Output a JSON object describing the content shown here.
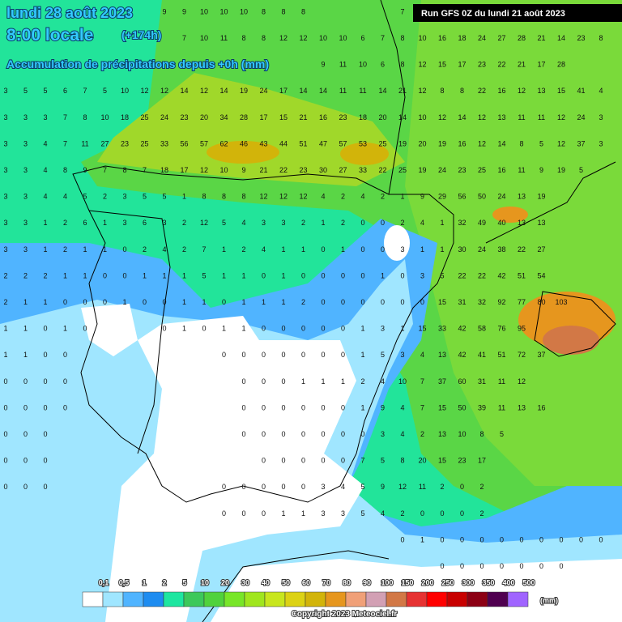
{
  "header": {
    "date": "lundi 28 août 2023",
    "time": "8:00 locale",
    "lead": "(+174h)",
    "subtitle": "Accumulation de précipitations depuis +0h (mm)"
  },
  "run": "Run GFS 0Z du lundi 21 août 2023",
  "grid": {
    "rows": [
      [
        null,
        null,
        null,
        null,
        null,
        null,
        null,
        null,
        9,
        9,
        10,
        10,
        10,
        8,
        8,
        8,
        null,
        null,
        null,
        null,
        7,
        null,
        null,
        null,
        null,
        null,
        null,
        null,
        null,
        null,
        null,
        null
      ],
      [
        null,
        null,
        null,
        null,
        null,
        null,
        null,
        null,
        null,
        7,
        10,
        11,
        8,
        8,
        12,
        12,
        10,
        10,
        6,
        7,
        8,
        10,
        16,
        18,
        24,
        27,
        28,
        21,
        14,
        23,
        8,
        null
      ],
      [
        null,
        null,
        null,
        null,
        null,
        null,
        null,
        null,
        null,
        null,
        null,
        null,
        null,
        null,
        null,
        null,
        9,
        11,
        10,
        6,
        8,
        12,
        15,
        17,
        23,
        22,
        21,
        17,
        28,
        null,
        null,
        null
      ],
      [
        3,
        5,
        5,
        6,
        7,
        5,
        10,
        12,
        12,
        14,
        12,
        14,
        19,
        24,
        17,
        14,
        14,
        11,
        11,
        14,
        21,
        12,
        8,
        8,
        22,
        16,
        12,
        13,
        15,
        41,
        4,
        null
      ],
      [
        3,
        3,
        3,
        7,
        8,
        10,
        18,
        25,
        24,
        23,
        20,
        34,
        28,
        17,
        15,
        21,
        16,
        23,
        18,
        20,
        14,
        10,
        12,
        14,
        12,
        13,
        11,
        11,
        12,
        24,
        3,
        null
      ],
      [
        3,
        3,
        4,
        7,
        11,
        27,
        23,
        25,
        33,
        56,
        57,
        62,
        46,
        43,
        44,
        51,
        47,
        57,
        53,
        25,
        19,
        20,
        19,
        16,
        12,
        14,
        8,
        5,
        12,
        37,
        3,
        null
      ],
      [
        3,
        3,
        4,
        8,
        9,
        7,
        8,
        7,
        18,
        17,
        12,
        10,
        9,
        21,
        22,
        23,
        30,
        27,
        33,
        22,
        25,
        19,
        24,
        23,
        25,
        16,
        11,
        9,
        19,
        5,
        null,
        null
      ],
      [
        3,
        3,
        4,
        4,
        5,
        2,
        3,
        5,
        5,
        1,
        8,
        8,
        8,
        12,
        12,
        12,
        4,
        2,
        4,
        2,
        1,
        9,
        29,
        56,
        50,
        24,
        13,
        19,
        null,
        null,
        null,
        null
      ],
      [
        3,
        3,
        1,
        2,
        6,
        1,
        3,
        6,
        3,
        2,
        12,
        5,
        4,
        3,
        3,
        2,
        1,
        2,
        0,
        0,
        2,
        4,
        1,
        32,
        49,
        40,
        13,
        13,
        null,
        null,
        null,
        null
      ],
      [
        3,
        3,
        1,
        2,
        1,
        1,
        0,
        2,
        4,
        2,
        7,
        1,
        2,
        4,
        1,
        1,
        0,
        1,
        0,
        0,
        3,
        1,
        1,
        30,
        24,
        38,
        22,
        27,
        null,
        null,
        null,
        null
      ],
      [
        2,
        2,
        2,
        1,
        1,
        0,
        0,
        1,
        1,
        1,
        5,
        1,
        1,
        0,
        1,
        0,
        0,
        0,
        0,
        1,
        0,
        3,
        5,
        22,
        22,
        42,
        51,
        54,
        null,
        null,
        null,
        null
      ],
      [
        2,
        1,
        1,
        0,
        0,
        0,
        1,
        0,
        0,
        1,
        1,
        0,
        1,
        1,
        1,
        2,
        0,
        0,
        0,
        0,
        0,
        0,
        15,
        31,
        32,
        92,
        77,
        80,
        103,
        null,
        null,
        null
      ],
      [
        1,
        1,
        0,
        1,
        0,
        null,
        null,
        null,
        0,
        1,
        0,
        1,
        1,
        0,
        0,
        0,
        0,
        0,
        1,
        3,
        1,
        15,
        33,
        42,
        58,
        76,
        95,
        null,
        null,
        null,
        null,
        null
      ],
      [
        1,
        1,
        0,
        0,
        null,
        null,
        null,
        null,
        null,
        null,
        null,
        0,
        0,
        0,
        0,
        0,
        0,
        0,
        1,
        5,
        3,
        4,
        13,
        42,
        41,
        51,
        72,
        37,
        null,
        null,
        null,
        null
      ],
      [
        0,
        0,
        0,
        0,
        null,
        null,
        null,
        null,
        null,
        null,
        null,
        null,
        0,
        0,
        0,
        1,
        1,
        1,
        2,
        4,
        10,
        7,
        37,
        60,
        31,
        11,
        12,
        null,
        null,
        null,
        null,
        null
      ],
      [
        0,
        0,
        0,
        0,
        null,
        null,
        null,
        null,
        null,
        null,
        null,
        null,
        0,
        0,
        0,
        0,
        0,
        0,
        1,
        9,
        4,
        7,
        15,
        50,
        39,
        11,
        13,
        16,
        null,
        null,
        null,
        null
      ],
      [
        0,
        0,
        0,
        null,
        null,
        null,
        null,
        null,
        null,
        null,
        null,
        null,
        0,
        0,
        0,
        0,
        0,
        0,
        0,
        3,
        4,
        2,
        13,
        10,
        8,
        5,
        null,
        null,
        null,
        null,
        null,
        null
      ],
      [
        0,
        0,
        0,
        null,
        null,
        null,
        null,
        null,
        null,
        null,
        null,
        null,
        null,
        0,
        0,
        0,
        0,
        0,
        7,
        5,
        8,
        20,
        15,
        23,
        17,
        null,
        null,
        null,
        null,
        null,
        null,
        null
      ],
      [
        0,
        0,
        0,
        null,
        null,
        null,
        null,
        null,
        null,
        null,
        null,
        0,
        0,
        0,
        0,
        0,
        3,
        4,
        5,
        9,
        12,
        11,
        2,
        0,
        2,
        null,
        null,
        null,
        null,
        null,
        null,
        null
      ],
      [
        null,
        null,
        null,
        null,
        null,
        null,
        null,
        null,
        null,
        null,
        null,
        0,
        0,
        0,
        1,
        1,
        3,
        3,
        5,
        4,
        2,
        0,
        0,
        0,
        2,
        null,
        null,
        null,
        null,
        null,
        null,
        null
      ],
      [
        null,
        null,
        null,
        null,
        null,
        null,
        null,
        null,
        null,
        null,
        null,
        null,
        null,
        null,
        null,
        null,
        null,
        null,
        null,
        null,
        0,
        1,
        0,
        0,
        0,
        0,
        0,
        0,
        0,
        0,
        0,
        null
      ],
      [
        null,
        null,
        null,
        null,
        null,
        null,
        null,
        null,
        null,
        null,
        null,
        null,
        null,
        null,
        null,
        null,
        null,
        null,
        null,
        null,
        null,
        null,
        0,
        0,
        0,
        0,
        0,
        0,
        0,
        null,
        null,
        null
      ]
    ]
  },
  "legend": {
    "labels": [
      "0,1",
      "0,5",
      "1",
      "2",
      "5",
      "10",
      "20",
      "30",
      "40",
      "50",
      "60",
      "70",
      "80",
      "90",
      "100",
      "150",
      "200",
      "250",
      "300",
      "350",
      "400",
      "500"
    ],
    "colors": [
      "#ffffff",
      "#a0e6ff",
      "#50b4ff",
      "#1e8cf0",
      "#1ee6a0",
      "#3cc85a",
      "#50d23c",
      "#78e628",
      "#a0e61e",
      "#c8e61e",
      "#dcd214",
      "#d2b40a",
      "#e6961e",
      "#f0a078",
      "#d2a0b4",
      "#d27846",
      "#e63232",
      "#ff0000",
      "#c80000",
      "#8c0014",
      "#500050",
      "#a064ff"
    ],
    "unit": "(mm)"
  },
  "copyright": "Copyright 2023 Meteociel.fr"
}
